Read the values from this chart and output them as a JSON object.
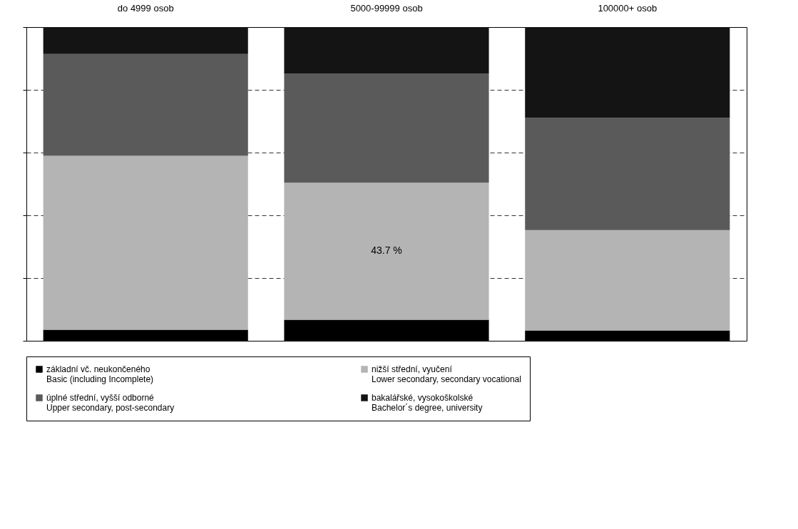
{
  "chart_data": {
    "type": "bar",
    "stacked": true,
    "categories": [
      "do 4999 osob",
      "5000-99999 osob",
      "100000+ osob"
    ],
    "series": [
      {
        "name": "základní vč. neukončeného\nBasic (including Incomplete)",
        "color": "#000000",
        "values": [
          3.5,
          6.7,
          3.3
        ]
      },
      {
        "name": "nižší střední, vyučení\nLower secondary, secondary vocational",
        "color": "#b4b4b4",
        "values": [
          55.5,
          43.7,
          32.0
        ],
        "value_labels": [
          null,
          "43.7 %",
          null
        ]
      },
      {
        "name": "úplné střední, vyšší odborné\nUpper secondary, post-secondary",
        "color": "#5a5a5a",
        "values": [
          32.4,
          34.7,
          35.8
        ]
      },
      {
        "name": "bakalářské, vysokoškolské\nBachelor´s degree, university",
        "color": "#141414",
        "values": [
          8.6,
          14.9,
          28.9
        ]
      }
    ],
    "ylim": [
      0,
      100
    ],
    "yticks": [
      {
        "value": 0,
        "label": null
      },
      {
        "value": 20,
        "label": null
      },
      {
        "value": 40,
        "label": null
      },
      {
        "value": 60,
        "label": null
      },
      {
        "value": 80,
        "label": null
      },
      {
        "value": 100,
        "label": null
      }
    ],
    "grid": "y",
    "legend": "bottom"
  }
}
